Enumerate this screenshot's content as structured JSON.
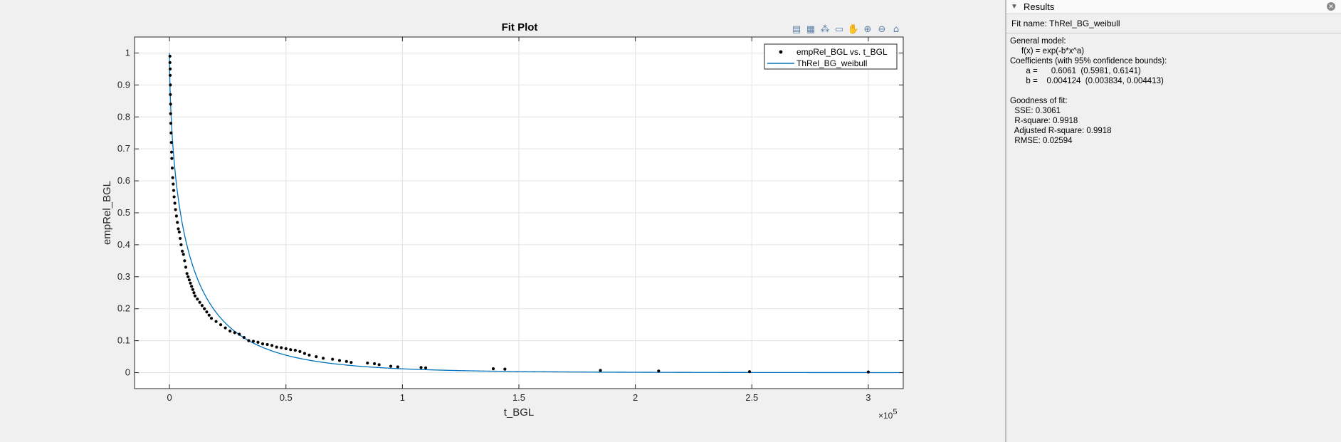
{
  "plot_panel": {
    "title": "Fit Plot",
    "toolbar": [
      {
        "icon": "legend-icon",
        "glyph": "▤"
      },
      {
        "icon": "grid-icon",
        "glyph": "▦"
      },
      {
        "icon": "data-cursor-icon",
        "glyph": "⁂"
      },
      {
        "icon": "insert-legend-icon",
        "glyph": "▭"
      },
      {
        "icon": "pan-icon",
        "glyph": "✋"
      },
      {
        "icon": "zoom-in-icon",
        "glyph": "⊕"
      },
      {
        "icon": "zoom-out-icon",
        "glyph": "⊖"
      },
      {
        "icon": "home-icon",
        "glyph": "⌂"
      }
    ]
  },
  "chart_data": {
    "type": "scatter",
    "title": "Fit Plot",
    "xlabel": "t_BGL",
    "ylabel": "empRel_BGL",
    "x_exponent_label": "×10",
    "x_exponent": "5",
    "xlim": [
      -0.15,
      3.15
    ],
    "ylim": [
      -0.05,
      1.05
    ],
    "xticks": [
      0,
      0.5,
      1,
      1.5,
      2,
      2.5,
      3
    ],
    "xtick_labels": [
      "0",
      "0.5",
      "1",
      "1.5",
      "2",
      "2.5",
      "3"
    ],
    "yticks": [
      0,
      0.1,
      0.2,
      0.3,
      0.4,
      0.5,
      0.6,
      0.7,
      0.8,
      0.9,
      1
    ],
    "ytick_labels": [
      "0",
      "0.1",
      "0.2",
      "0.3",
      "0.4",
      "0.5",
      "0.6",
      "0.7",
      "0.8",
      "0.9",
      "1"
    ],
    "grid": true,
    "legend_position": "top-right",
    "series": [
      {
        "name": "empRel_BGL vs. t_BGL",
        "kind": "points",
        "color": "#000000",
        "x": [
          0.002,
          0.002,
          0.003,
          0.003,
          0.004,
          0.004,
          0.005,
          0.005,
          0.006,
          0.007,
          0.008,
          0.009,
          0.01,
          0.012,
          0.014,
          0.016,
          0.018,
          0.02,
          0.023,
          0.026,
          0.03,
          0.034,
          0.038,
          0.042,
          0.046,
          0.05,
          0.055,
          0.06,
          0.065,
          0.07,
          0.075,
          0.08,
          0.085,
          0.09,
          0.095,
          0.1,
          0.105,
          0.11,
          0.12,
          0.13,
          0.14,
          0.15,
          0.16,
          0.17,
          0.18,
          0.2,
          0.22,
          0.24,
          0.26,
          0.28,
          0.3,
          0.32,
          0.34,
          0.36,
          0.38,
          0.4,
          0.42,
          0.44,
          0.46,
          0.48,
          0.5,
          0.52,
          0.54,
          0.56,
          0.58,
          0.6,
          0.63,
          0.66,
          0.7,
          0.73,
          0.76,
          0.78,
          0.85,
          0.88,
          0.9,
          0.95,
          0.98,
          1.08,
          1.1,
          1.39,
          1.44,
          1.85,
          2.1,
          2.49,
          3.0
        ],
        "y": [
          0.99,
          0.97,
          0.95,
          0.93,
          0.9,
          0.87,
          0.84,
          0.81,
          0.78,
          0.75,
          0.72,
          0.69,
          0.67,
          0.64,
          0.61,
          0.59,
          0.57,
          0.55,
          0.53,
          0.51,
          0.49,
          0.47,
          0.45,
          0.44,
          0.42,
          0.4,
          0.38,
          0.37,
          0.35,
          0.33,
          0.31,
          0.3,
          0.29,
          0.28,
          0.27,
          0.26,
          0.25,
          0.24,
          0.23,
          0.22,
          0.21,
          0.2,
          0.19,
          0.18,
          0.17,
          0.16,
          0.15,
          0.14,
          0.13,
          0.125,
          0.12,
          0.11,
          0.1,
          0.098,
          0.095,
          0.09,
          0.088,
          0.085,
          0.08,
          0.078,
          0.075,
          0.072,
          0.07,
          0.066,
          0.06,
          0.055,
          0.05,
          0.045,
          0.042,
          0.038,
          0.035,
          0.032,
          0.03,
          0.028,
          0.025,
          0.02,
          0.018,
          0.016,
          0.015,
          0.012,
          0.011,
          0.007,
          0.005,
          0.003,
          0.002
        ]
      },
      {
        "name": "ThRel_BG_weibull",
        "kind": "fit",
        "color": "#0072bd",
        "a": 0.6061,
        "b": 0.004124
      }
    ]
  },
  "results": {
    "header": "Results",
    "fit_name": "Fit name: ThRel_BG_weibull",
    "lines": [
      "General model:",
      "     f(x) = exp(-b*x^a)",
      "Coefficients (with 95% confidence bounds):",
      "       a =      0.6061  (0.5981, 0.6141)",
      "       b =    0.004124  (0.003834, 0.004413)",
      "",
      "Goodness of fit:",
      "  SSE: 0.3061",
      "  R-square: 0.9918",
      "  Adjusted R-square: 0.9918",
      "  RMSE: 0.02594"
    ]
  }
}
